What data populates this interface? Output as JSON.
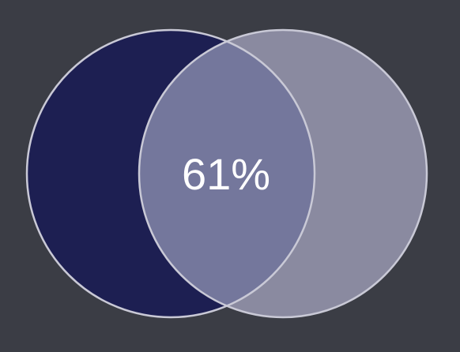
{
  "diagram": {
    "type": "venn",
    "overlap_label": "61%",
    "colors": {
      "background": "#3b3d45",
      "left_circle_fill": "#1d1f52",
      "right_circle_fill": "#8a8aa0",
      "overlap_fill": "#74779c",
      "circle_stroke": "#c9c9d6",
      "label": "#ffffff"
    }
  }
}
